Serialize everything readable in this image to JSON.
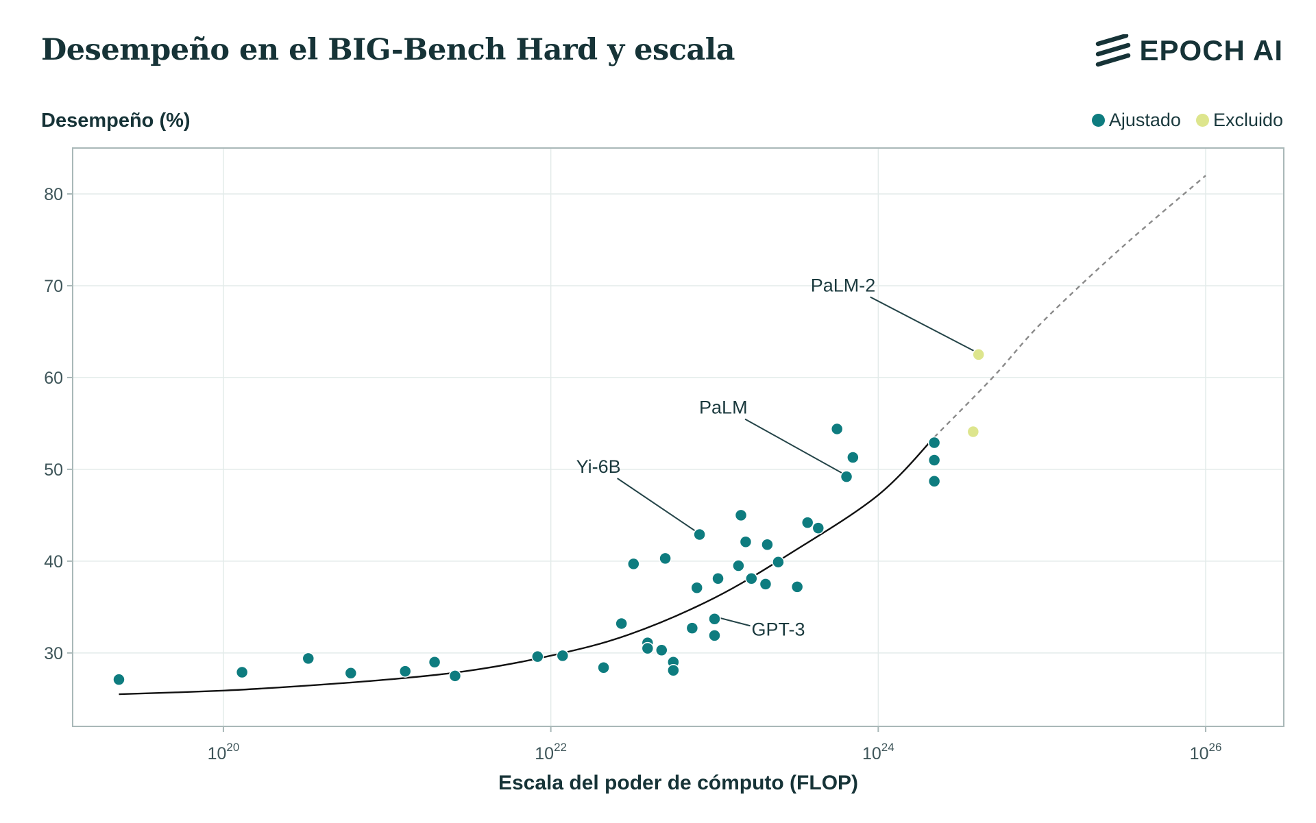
{
  "title": "Desempeño en el BIG-Bench Hard y escala",
  "brand": {
    "name": "EPOCH AI",
    "icon": "epoch-stripes-icon"
  },
  "legend": [
    {
      "label": "Ajustado",
      "color": "#0e7c7f"
    },
    {
      "label": "Excluido",
      "color": "#dde58d"
    }
  ],
  "chart_data": {
    "type": "scatter",
    "ylabel": "Desempeño (%)",
    "xlabel": "Escala del poder de cómputo (FLOP)",
    "x_scale": "log",
    "xlim": [
      1.2e+19,
      3e+26
    ],
    "ylim": [
      22,
      85
    ],
    "x_ticks": [
      {
        "value": 1e+20,
        "base": "10",
        "exp": "20"
      },
      {
        "value": 1e+22,
        "base": "10",
        "exp": "22"
      },
      {
        "value": 1e+24,
        "base": "10",
        "exp": "24"
      },
      {
        "value": 1e+26,
        "base": "10",
        "exp": "26"
      }
    ],
    "y_ticks": [
      30,
      40,
      50,
      60,
      70,
      80
    ],
    "grid": true,
    "legend_position": "top-right",
    "series": [
      {
        "name": "Ajustado",
        "color": "#0e7c7f",
        "points": [
          {
            "x": 2.3e+19,
            "y": 27.1
          },
          {
            "x": 1.3e+20,
            "y": 27.9
          },
          {
            "x": 3.3e+20,
            "y": 29.4
          },
          {
            "x": 6e+20,
            "y": 27.8
          },
          {
            "x": 1.29e+21,
            "y": 28.0
          },
          {
            "x": 1.95e+21,
            "y": 29.0
          },
          {
            "x": 2.6e+21,
            "y": 27.5
          },
          {
            "x": 8.3e+21,
            "y": 29.6
          },
          {
            "x": 1.18e+22,
            "y": 29.7
          },
          {
            "x": 2.1e+22,
            "y": 28.4
          },
          {
            "x": 2.7e+22,
            "y": 33.2
          },
          {
            "x": 3.2e+22,
            "y": 39.7
          },
          {
            "x": 3.9e+22,
            "y": 31.1
          },
          {
            "x": 3.9e+22,
            "y": 30.5
          },
          {
            "x": 4.75e+22,
            "y": 30.3
          },
          {
            "x": 5e+22,
            "y": 40.3
          },
          {
            "x": 5.6e+22,
            "y": 29.0
          },
          {
            "x": 5.6e+22,
            "y": 28.1
          },
          {
            "x": 7.3e+22,
            "y": 32.7
          },
          {
            "x": 7.8e+22,
            "y": 37.1
          },
          {
            "x": 8.1e+22,
            "y": 42.9,
            "label": "Yi-6B"
          },
          {
            "x": 1e+23,
            "y": 33.7,
            "label": "GPT-3"
          },
          {
            "x": 1e+23,
            "y": 31.9
          },
          {
            "x": 1.05e+23,
            "y": 38.1
          },
          {
            "x": 1.4e+23,
            "y": 39.5
          },
          {
            "x": 1.45e+23,
            "y": 45.0
          },
          {
            "x": 1.55e+23,
            "y": 42.1
          },
          {
            "x": 1.68e+23,
            "y": 38.1
          },
          {
            "x": 2.05e+23,
            "y": 37.5
          },
          {
            "x": 2.1e+23,
            "y": 41.8
          },
          {
            "x": 2.45e+23,
            "y": 39.9
          },
          {
            "x": 3.2e+23,
            "y": 37.2
          },
          {
            "x": 3.7e+23,
            "y": 44.2
          },
          {
            "x": 4.3e+23,
            "y": 43.6
          },
          {
            "x": 5.6e+23,
            "y": 54.4
          },
          {
            "x": 6.4e+23,
            "y": 49.2,
            "label": "PaLM"
          },
          {
            "x": 7e+23,
            "y": 51.3
          },
          {
            "x": 2.2e+24,
            "y": 52.9
          },
          {
            "x": 2.2e+24,
            "y": 51.0
          },
          {
            "x": 2.2e+24,
            "y": 48.7
          }
        ]
      },
      {
        "name": "Excluido",
        "color": "#dde58d",
        "points": [
          {
            "x": 4.1e+24,
            "y": 62.5,
            "label": "PaLM-2"
          },
          {
            "x": 3.8e+24,
            "y": 54.1
          }
        ]
      }
    ],
    "fit": {
      "fitted": [
        {
          "x": 2.3e+19,
          "y": 25.5
        },
        {
          "x": 1e+20,
          "y": 25.9
        },
        {
          "x": 3e+20,
          "y": 26.4
        },
        {
          "x": 1e+21,
          "y": 27.1
        },
        {
          "x": 3e+21,
          "y": 28.0
        },
        {
          "x": 1e+22,
          "y": 29.7
        },
        {
          "x": 3e+22,
          "y": 32.0
        },
        {
          "x": 1e+23,
          "y": 36.0
        },
        {
          "x": 3e+23,
          "y": 41.0
        },
        {
          "x": 1e+24,
          "y": 47.2
        },
        {
          "x": 2.2e+24,
          "y": 53.5
        }
      ],
      "projected": [
        {
          "x": 2.2e+24,
          "y": 53.5
        },
        {
          "x": 5e+24,
          "y": 60.0
        },
        {
          "x": 1e+25,
          "y": 66.0
        },
        {
          "x": 3e+25,
          "y": 74.0
        },
        {
          "x": 1e+26,
          "y": 82.0
        }
      ]
    }
  }
}
